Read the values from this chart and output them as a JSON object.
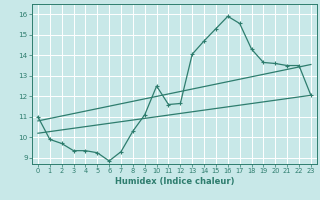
{
  "title": "",
  "xlabel": "Humidex (Indice chaleur)",
  "ylabel": "",
  "line_color": "#2e7d6e",
  "bg_color": "#c8e8e8",
  "grid_color": "#b0d8d8",
  "xlim": [
    -0.5,
    23.5
  ],
  "ylim": [
    8.7,
    16.5
  ],
  "xticks": [
    0,
    1,
    2,
    3,
    4,
    5,
    6,
    7,
    8,
    9,
    10,
    11,
    12,
    13,
    14,
    15,
    16,
    17,
    18,
    19,
    20,
    21,
    22,
    23
  ],
  "yticks": [
    9,
    10,
    11,
    12,
    13,
    14,
    15,
    16
  ],
  "curve1_x": [
    0,
    1,
    2,
    3,
    4,
    5,
    6,
    7,
    8,
    9,
    10,
    11,
    12,
    13,
    14,
    15,
    16,
    17,
    18,
    19,
    20,
    21,
    22,
    23
  ],
  "curve1_y": [
    11.0,
    9.9,
    9.7,
    9.35,
    9.35,
    9.25,
    8.85,
    9.3,
    10.3,
    11.1,
    12.5,
    11.6,
    11.65,
    14.05,
    14.7,
    15.3,
    15.9,
    15.55,
    14.3,
    13.65,
    13.6,
    13.5,
    13.5,
    12.05
  ],
  "line1_x": [
    0,
    23
  ],
  "line1_y": [
    10.2,
    12.05
  ],
  "line2_x": [
    0,
    23
  ],
  "line2_y": [
    10.8,
    13.55
  ]
}
